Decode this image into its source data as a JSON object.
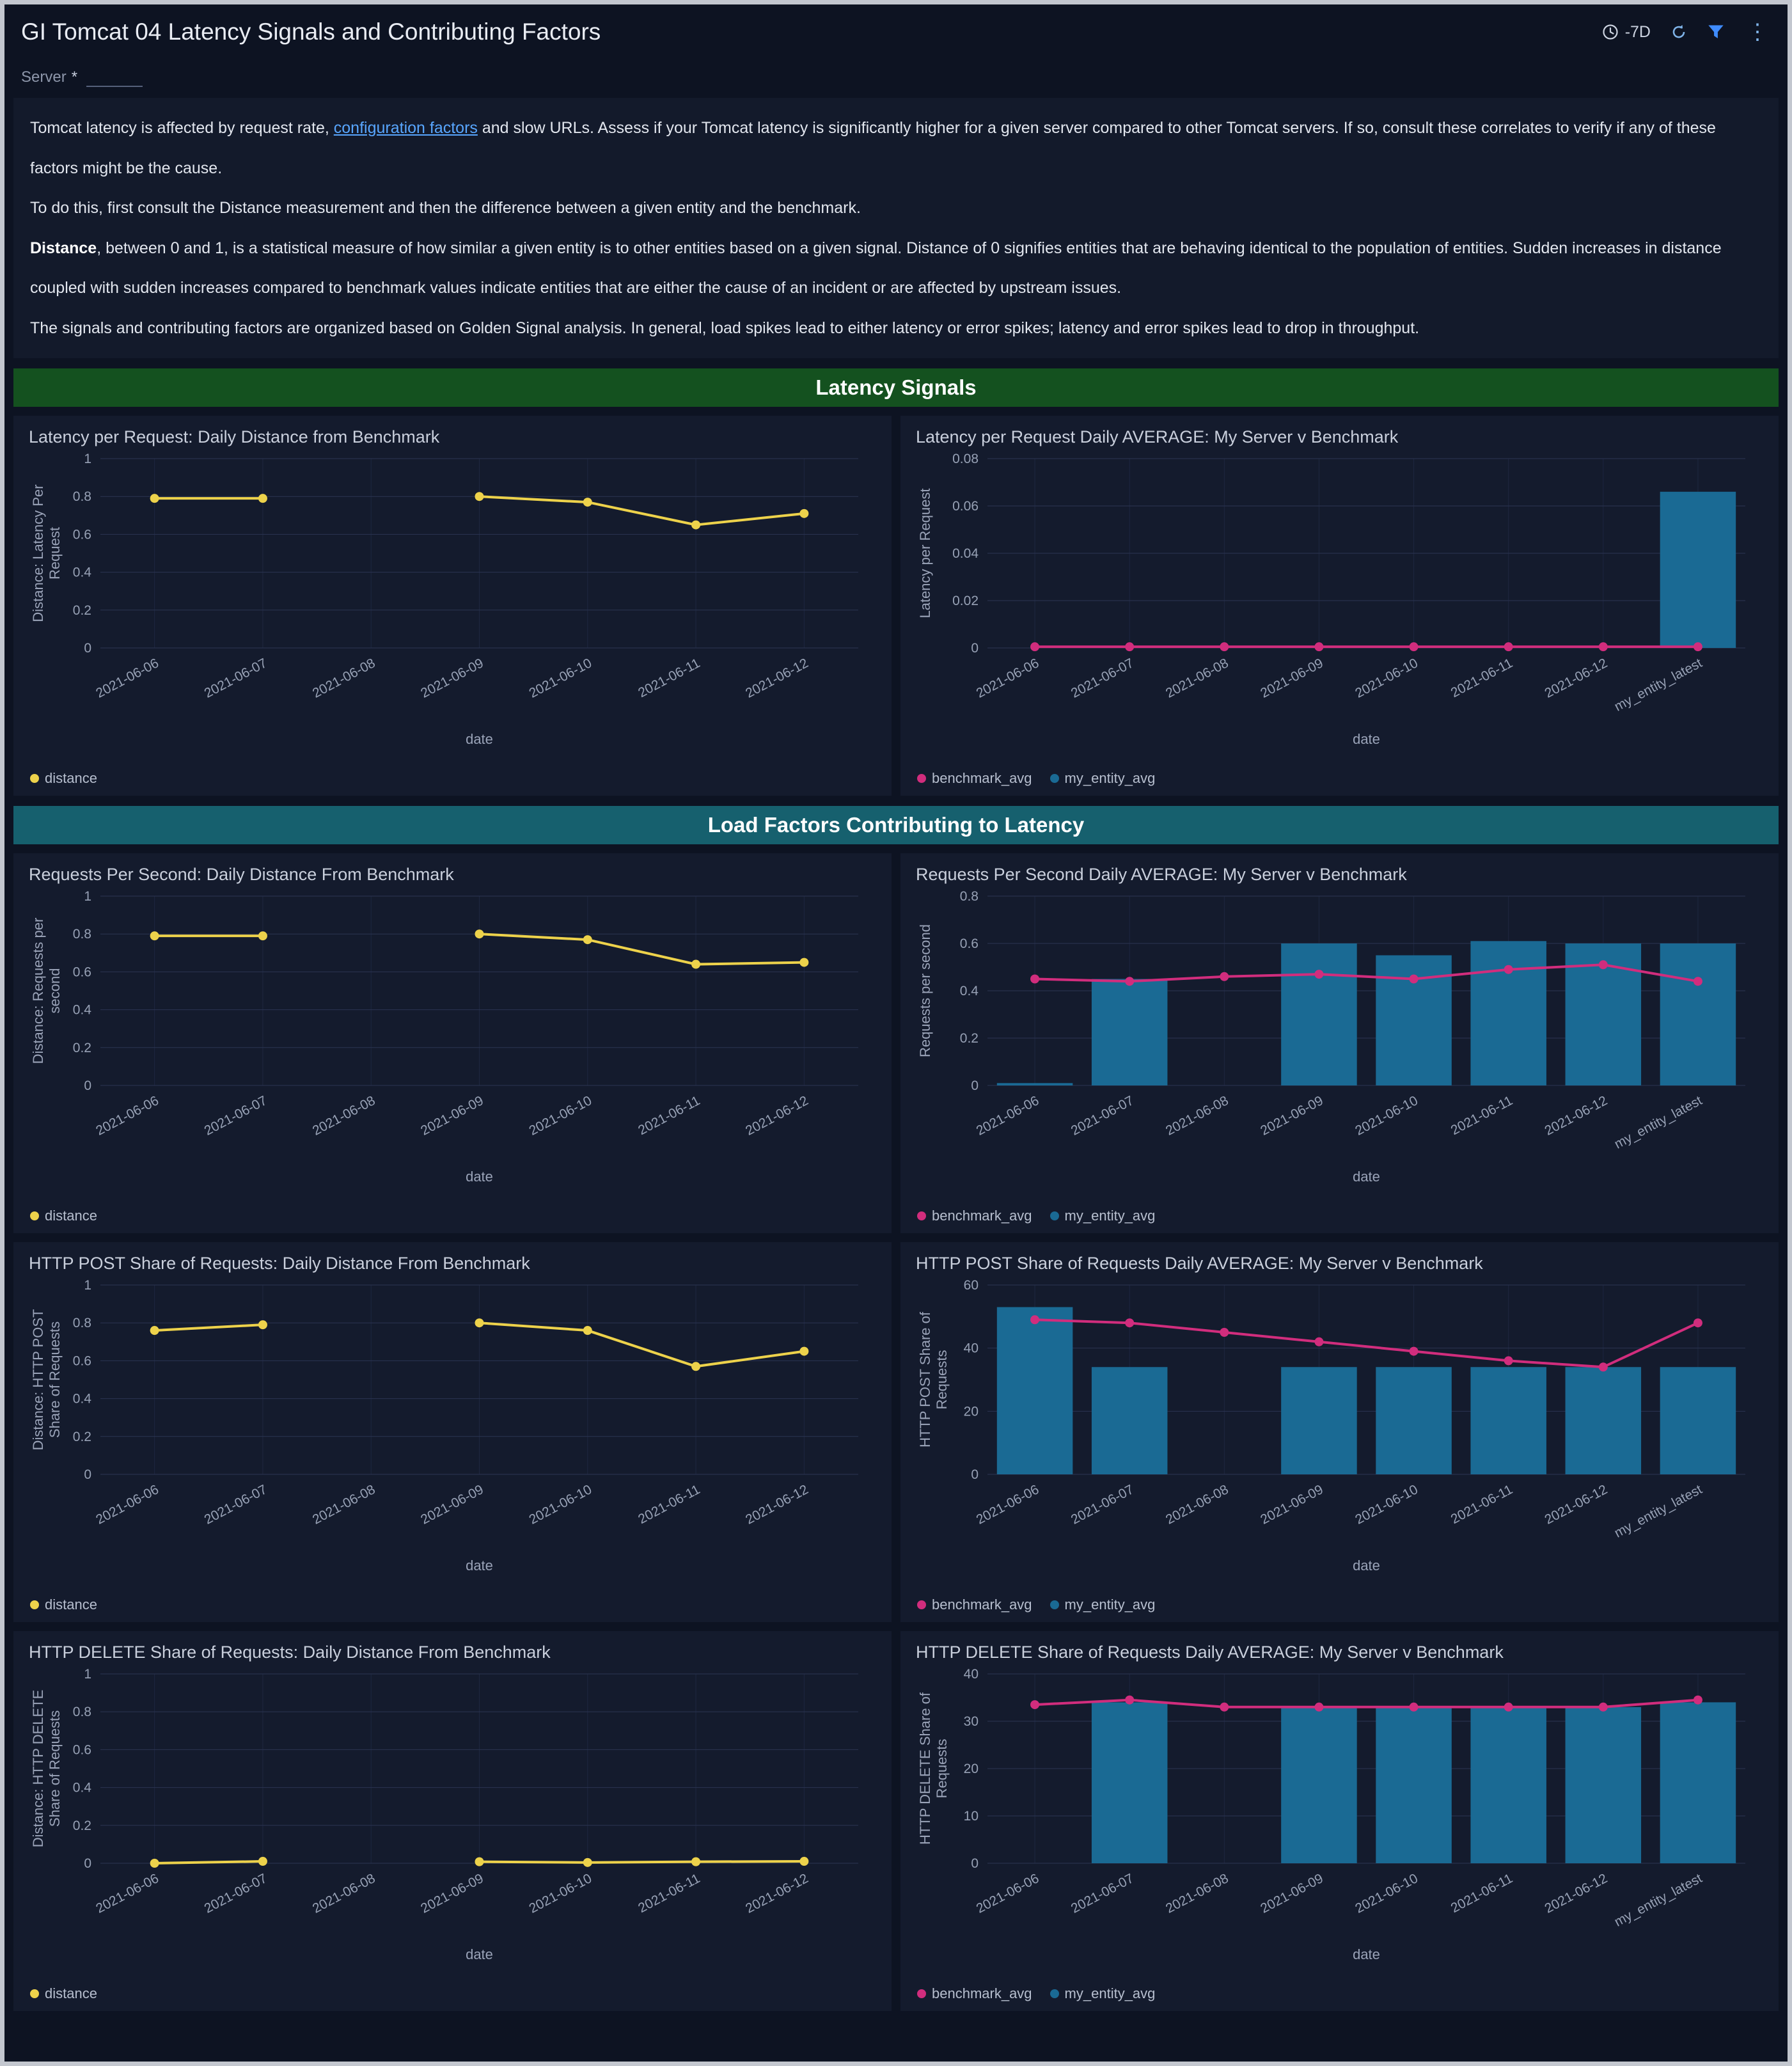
{
  "header": {
    "title": "GI Tomcat 04 Latency Signals and Contributing Factors",
    "time_range": "-7D",
    "icons": [
      "clock-icon",
      "refresh-icon",
      "filter-icon",
      "kebab-icon"
    ]
  },
  "filter": {
    "label": "Server",
    "required_marker": "*",
    "value": ""
  },
  "description": {
    "p1_pre": "Tomcat latency is affected by request rate, ",
    "p1_link": "configuration factors",
    "p1_post": " and slow URLs. Assess if your Tomcat latency is significantly higher for a given server compared to other Tomcat servers. If so, consult these correlates to verify if any of these factors might be the cause.",
    "p2": "To do this, first consult the Distance measurement and then the difference between a given entity and the benchmark.",
    "p3_bold": "Distance",
    "p3_rest": ", between 0 and 1, is a statistical measure of how similar a given entity is to other entities based on a given signal. Distance of 0 signifies entities that are behaving identical to the population of entities. Sudden increases in distance coupled with sudden increases compared to benchmark values indicate entities that are either the cause of an incident or are affected by upstream issues.",
    "p4": "The signals and contributing factors are organized based on Golden Signal analysis. In general, load spikes lead to either latency or error spikes; latency and error spikes lead to drop in throughput."
  },
  "sections": [
    {
      "title": "Latency Signals",
      "bg": "#14511f",
      "panels": [
        0,
        1
      ]
    },
    {
      "title": "Load Factors Contributing to Latency",
      "bg": "#16606e",
      "panels": [
        2,
        3,
        4,
        5,
        6,
        7
      ]
    }
  ],
  "colors": {
    "distance_line": "#edd24b",
    "benchmark_line": "#d12d7d",
    "entity_bar": "#1a6a94",
    "link": "#58a6ff",
    "filter_icon": "#3f8cff"
  },
  "chart_data": [
    {
      "panel_title": "Latency per Request: Daily Distance from Benchmark",
      "type": "line",
      "categories": [
        "2021-06-06",
        "2021-06-07",
        "2021-06-08",
        "2021-06-09",
        "2021-06-10",
        "2021-06-11",
        "2021-06-12"
      ],
      "lines": [
        {
          "name": "distance",
          "color": "#edd24b",
          "values": [
            0.79,
            0.79,
            null,
            0.8,
            0.77,
            0.65,
            0.71
          ]
        }
      ],
      "ylabel": [
        "Distance: Latency Per",
        "Request"
      ],
      "xlabel": "date",
      "ylim": [
        0,
        1
      ],
      "yticks": [
        0,
        0.2,
        0.4,
        0.6,
        0.8,
        1
      ],
      "legend": [
        {
          "label": "distance",
          "color": "#edd24b"
        }
      ]
    },
    {
      "panel_title": "Latency per Request Daily AVERAGE: My Server v Benchmark",
      "type": "combo",
      "categories": [
        "2021-06-06",
        "2021-06-07",
        "2021-06-08",
        "2021-06-09",
        "2021-06-10",
        "2021-06-11",
        "2021-06-12",
        "my_entity_latest"
      ],
      "bars": {
        "name": "my_entity_avg",
        "color": "#1a6a94",
        "values": [
          0,
          0,
          0,
          0,
          0,
          0,
          0,
          0.066
        ]
      },
      "lines": [
        {
          "name": "benchmark_avg",
          "color": "#d12d7d",
          "values": [
            0.0005,
            0.0005,
            0.0005,
            0.0005,
            0.0005,
            0.0005,
            0.0005,
            0.0005
          ]
        }
      ],
      "ylabel": [
        "Latency per Request"
      ],
      "xlabel": "date",
      "ylim": [
        0,
        0.08
      ],
      "yticks": [
        0,
        0.02,
        0.04,
        0.06,
        0.08
      ],
      "legend": [
        {
          "label": "benchmark_avg",
          "color": "#d12d7d"
        },
        {
          "label": "my_entity_avg",
          "color": "#1a6a94"
        }
      ]
    },
    {
      "panel_title": "Requests Per Second: Daily Distance From Benchmark",
      "type": "line",
      "categories": [
        "2021-06-06",
        "2021-06-07",
        "2021-06-08",
        "2021-06-09",
        "2021-06-10",
        "2021-06-11",
        "2021-06-12"
      ],
      "lines": [
        {
          "name": "distance",
          "color": "#edd24b",
          "values": [
            0.79,
            0.79,
            null,
            0.8,
            0.77,
            0.64,
            0.65
          ]
        }
      ],
      "ylabel": [
        "Distance: Requests per",
        "second"
      ],
      "xlabel": "date",
      "ylim": [
        0,
        1
      ],
      "yticks": [
        0,
        0.2,
        0.4,
        0.6,
        0.8,
        1
      ],
      "legend": [
        {
          "label": "distance",
          "color": "#edd24b"
        }
      ]
    },
    {
      "panel_title": "Requests Per Second Daily AVERAGE: My Server v Benchmark",
      "type": "combo",
      "categories": [
        "2021-06-06",
        "2021-06-07",
        "2021-06-08",
        "2021-06-09",
        "2021-06-10",
        "2021-06-11",
        "2021-06-12",
        "my_entity_latest"
      ],
      "bars": {
        "name": "my_entity_avg",
        "color": "#1a6a94",
        "values": [
          0.01,
          0.45,
          0,
          0.6,
          0.55,
          0.61,
          0.6,
          0.6
        ]
      },
      "lines": [
        {
          "name": "benchmark_avg",
          "color": "#d12d7d",
          "values": [
            0.45,
            0.44,
            0.46,
            0.47,
            0.45,
            0.49,
            0.51,
            0.44
          ]
        }
      ],
      "ylabel": [
        "Requests per second"
      ],
      "xlabel": "date",
      "ylim": [
        0,
        0.8
      ],
      "yticks": [
        0,
        0.2,
        0.4,
        0.6,
        0.8
      ],
      "legend": [
        {
          "label": "benchmark_avg",
          "color": "#d12d7d"
        },
        {
          "label": "my_entity_avg",
          "color": "#1a6a94"
        }
      ]
    },
    {
      "panel_title": "HTTP POST Share of Requests: Daily Distance From Benchmark",
      "type": "line",
      "categories": [
        "2021-06-06",
        "2021-06-07",
        "2021-06-08",
        "2021-06-09",
        "2021-06-10",
        "2021-06-11",
        "2021-06-12"
      ],
      "lines": [
        {
          "name": "distance",
          "color": "#edd24b",
          "values": [
            0.76,
            0.79,
            null,
            0.8,
            0.76,
            0.57,
            0.65
          ]
        }
      ],
      "ylabel": [
        "Distance: HTTP POST",
        "Share of Requests"
      ],
      "xlabel": "date",
      "ylim": [
        0,
        1
      ],
      "yticks": [
        0,
        0.2,
        0.4,
        0.6,
        0.8,
        1
      ],
      "legend": [
        {
          "label": "distance",
          "color": "#edd24b"
        }
      ]
    },
    {
      "panel_title": "HTTP POST Share of Requests Daily AVERAGE: My Server v Benchmark",
      "type": "combo",
      "categories": [
        "2021-06-06",
        "2021-06-07",
        "2021-06-08",
        "2021-06-09",
        "2021-06-10",
        "2021-06-11",
        "2021-06-12",
        "my_entity_latest"
      ],
      "bars": {
        "name": "my_entity_avg",
        "color": "#1a6a94",
        "values": [
          53,
          34,
          0,
          34,
          34,
          34,
          34,
          34
        ]
      },
      "lines": [
        {
          "name": "benchmark_avg",
          "color": "#d12d7d",
          "values": [
            49,
            48,
            45,
            42,
            39,
            36,
            34,
            48
          ]
        }
      ],
      "ylabel": [
        "HTTP POST Share of",
        "Requests"
      ],
      "xlabel": "date",
      "ylim": [
        0,
        60
      ],
      "yticks": [
        0,
        20,
        40,
        60
      ],
      "legend": [
        {
          "label": "benchmark_avg",
          "color": "#d12d7d"
        },
        {
          "label": "my_entity_avg",
          "color": "#1a6a94"
        }
      ]
    },
    {
      "panel_title": "HTTP DELETE Share of Requests: Daily Distance From Benchmark",
      "type": "line",
      "categories": [
        "2021-06-06",
        "2021-06-07",
        "2021-06-08",
        "2021-06-09",
        "2021-06-10",
        "2021-06-11",
        "2021-06-12"
      ],
      "lines": [
        {
          "name": "distance",
          "color": "#edd24b",
          "values": [
            0,
            0.01,
            null,
            0.008,
            0.004,
            0.008,
            0.01
          ]
        }
      ],
      "ylabel": [
        "Distance: HTTP DELETE",
        "Share of Requests"
      ],
      "xlabel": "date",
      "ylim": [
        0,
        1
      ],
      "yticks": [
        0,
        0.2,
        0.4,
        0.6,
        0.8,
        1
      ],
      "legend": [
        {
          "label": "distance",
          "color": "#edd24b"
        }
      ]
    },
    {
      "panel_title": "HTTP DELETE Share of Requests Daily AVERAGE: My Server v Benchmark",
      "type": "combo",
      "categories": [
        "2021-06-06",
        "2021-06-07",
        "2021-06-08",
        "2021-06-09",
        "2021-06-10",
        "2021-06-11",
        "2021-06-12",
        "my_entity_latest"
      ],
      "bars": {
        "name": "my_entity_avg",
        "color": "#1a6a94",
        "values": [
          0,
          34,
          0,
          33,
          33,
          33,
          33,
          34
        ]
      },
      "lines": [
        {
          "name": "benchmark_avg",
          "color": "#d12d7d",
          "values": [
            33.5,
            34.5,
            33,
            33,
            33,
            33,
            33,
            34.5
          ]
        }
      ],
      "ylabel": [
        "HTTP DELETE Share of",
        "Requests"
      ],
      "xlabel": "date",
      "ylim": [
        0,
        40
      ],
      "yticks": [
        0,
        10,
        20,
        30,
        40
      ],
      "legend": [
        {
          "label": "benchmark_avg",
          "color": "#d12d7d"
        },
        {
          "label": "my_entity_avg",
          "color": "#1a6a94"
        }
      ]
    }
  ]
}
